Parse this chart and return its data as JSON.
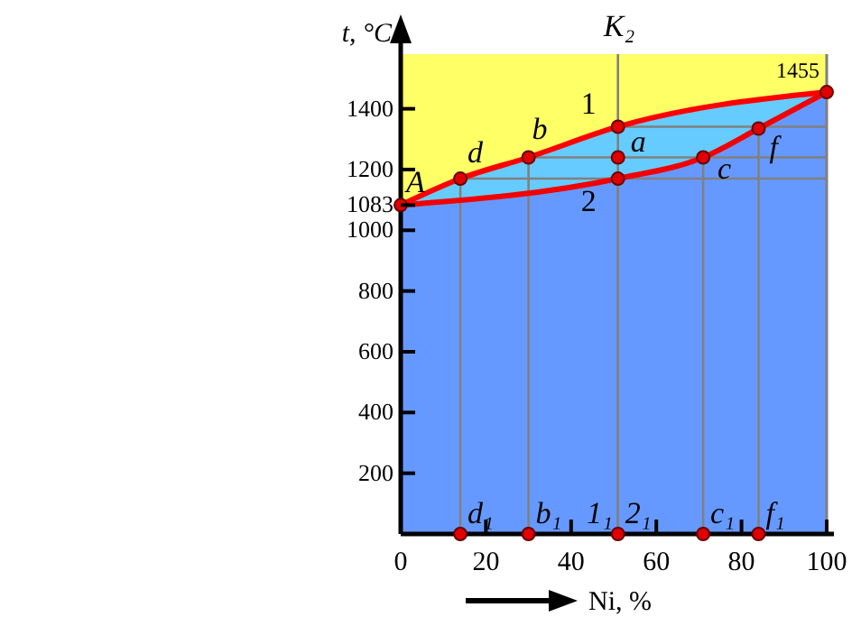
{
  "chart_data": {
    "type": "line",
    "xlabel": "Ni, %",
    "ylabel": "t, °C",
    "xlim": [
      0,
      100
    ],
    "ylim": [
      0,
      1580
    ],
    "xticks": [
      0,
      20,
      40,
      60,
      80,
      100
    ],
    "yticks": [
      200,
      400,
      600,
      800,
      1000,
      1083,
      1200,
      1400
    ],
    "series": [
      {
        "color": "#ff0000",
        "marker": "none",
        "x": [
          0,
          14,
          30,
          51,
          100
        ],
        "values": [
          1083,
          1170,
          1240,
          1341,
          1455
        ]
      },
      {
        "color": "#f20000",
        "marker": "none",
        "x": [
          0,
          51,
          71,
          84,
          100
        ],
        "values": [
          1083,
          1170,
          1240,
          1335,
          1455
        ]
      },
      {
        "type": "scatter",
        "color": "#e00000",
        "x": [
          0,
          14,
          30,
          51,
          51,
          51,
          71,
          84,
          100,
          14,
          30,
          51,
          71,
          84
        ],
        "values": [
          1083,
          1170,
          1240,
          1341,
          1240,
          1170,
          1240,
          1335,
          1455,
          0,
          0,
          0,
          0,
          0
        ]
      }
    ],
    "marker": "circle",
    "annotations": [
      {
        "text": "A",
        "x": 0,
        "y": 1083
      },
      {
        "text": "d",
        "x": 14,
        "y": 1170
      },
      {
        "text": "b",
        "x": 30,
        "y": 1240
      },
      {
        "text": "1",
        "x": 51,
        "y": 1341
      },
      {
        "text": "a",
        "x": 51,
        "y": 1240
      },
      {
        "text": "2",
        "x": 51,
        "y": 1170
      },
      {
        "text": "c",
        "x": 71,
        "y": 1240
      },
      {
        "text": "f",
        "x": 84,
        "y": 1335
      },
      {
        "text": "1455",
        "x": 100,
        "y": 1455
      },
      "K₂",
      {
        "text": "d₁",
        "x": 14,
        "y": 0
      },
      {
        "text": "b₁",
        "x": 30,
        "y": 0
      },
      {
        "text": "1₁",
        "x": 51,
        "y": 0
      },
      {
        "text": "2₁",
        "x": 51,
        "y": 0
      },
      {
        "text": "c₁",
        "x": 71,
        "y": 0
      },
      {
        "text": "f₁",
        "x": 84,
        "y": 0
      }
    ],
    "grid": false
  }
}
